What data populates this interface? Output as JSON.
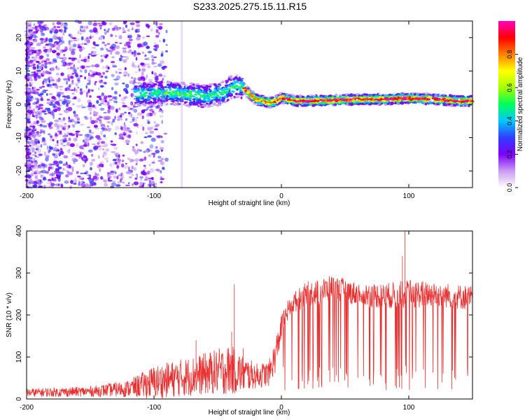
{
  "title": "S233.2025.275.15.11.R15",
  "chart_data": [
    {
      "type": "heatmap",
      "title": "S233.2025.275.15.11.R15",
      "xlabel": "Height of straight line (km)",
      "ylabel": "Frequency (Hz)",
      "xlim": [
        -200,
        150
      ],
      "ylim": [
        -25,
        25
      ],
      "xticks": [
        -200,
        -100,
        0,
        100
      ],
      "yticks": [
        -20,
        -10,
        0,
        10,
        20
      ],
      "colorbar": {
        "label": "Normalized spectral amplitude",
        "range": [
          0.0,
          1.0
        ],
        "ticks": [
          0.0,
          0.2,
          0.4,
          0.6,
          0.8
        ],
        "tick_labels": [
          "0.0",
          "0.2",
          "0.4",
          "0.6",
          "0.8"
        ],
        "colormap": [
          "#ffffff",
          "#c79bf0",
          "#7f00ff",
          "#2f3dff",
          "#00c8ff",
          "#00ff5a",
          "#a6ff00",
          "#ffff00",
          "#ff8000",
          "#ff0000",
          "#ff00c0"
        ]
      },
      "ridge": {
        "x": [
          -110,
          -90,
          -75,
          -60,
          -50,
          -45,
          -40,
          -35,
          -30,
          -25,
          -20,
          -15,
          -10,
          -5,
          0,
          5,
          10,
          20,
          40,
          60,
          80,
          100,
          120,
          140,
          150
        ],
        "freq": [
          3,
          3.5,
          3,
          2.5,
          3,
          3.5,
          5,
          5.5,
          5,
          3,
          1.5,
          1,
          0.5,
          0.8,
          2,
          1.5,
          1,
          1,
          1.2,
          1.5,
          1.5,
          1.8,
          1.5,
          1,
          1
        ]
      }
    },
    {
      "type": "line",
      "xlabel": "Height of straight line (km)",
      "ylabel": "SNR (10 * v/v)",
      "xlim": [
        -200,
        150
      ],
      "ylim": [
        0,
        400
      ],
      "xticks": [
        -200,
        -100,
        0,
        100
      ],
      "yticks": [
        0,
        100,
        200,
        300,
        400
      ],
      "series": [
        {
          "name": "SNR",
          "color": "#e83030",
          "envelope_x": [
            -200,
            -150,
            -120,
            -100,
            -80,
            -60,
            -40,
            -30,
            -20,
            -10,
            -5,
            0,
            5,
            10,
            20,
            30,
            40,
            60,
            80,
            100,
            120,
            150
          ],
          "envelope_mid": [
            15,
            18,
            25,
            40,
            50,
            60,
            70,
            60,
            55,
            60,
            100,
            170,
            210,
            230,
            250,
            255,
            265,
            250,
            245,
            250,
            250,
            240
          ],
          "envelope_amp": [
            10,
            12,
            20,
            40,
            45,
            50,
            60,
            45,
            30,
            30,
            40,
            30,
            25,
            25,
            30,
            30,
            30,
            28,
            30,
            35,
            30,
            30
          ],
          "dips_start": 0,
          "spikes": [
            {
              "x": -37,
              "y": 273
            },
            {
              "x": -39,
              "y": 160
            },
            {
              "x": -67,
              "y": 140
            },
            {
              "x": -30,
              "y": 120
            },
            {
              "x": 97,
              "y": 400
            },
            {
              "x": 95,
              "y": 340
            }
          ]
        }
      ]
    }
  ]
}
